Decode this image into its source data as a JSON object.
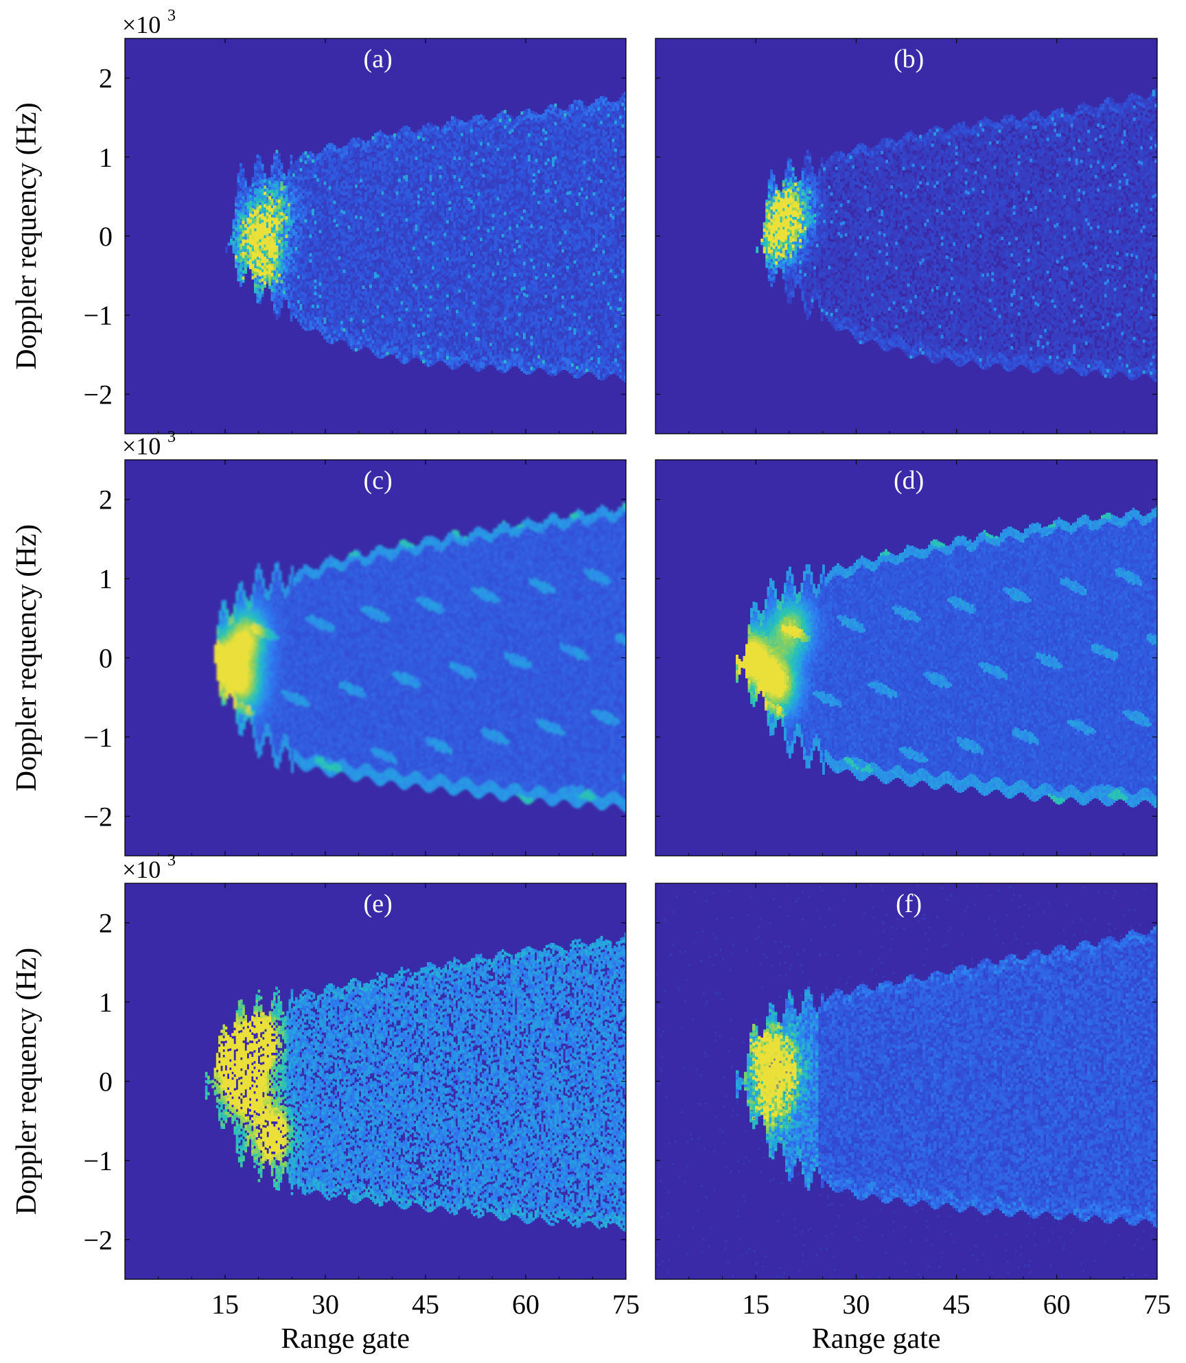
{
  "figure": {
    "background_color": "#3b2aa8",
    "colormap": [
      "#3b2aa8",
      "#3050d8",
      "#2f7cf0",
      "#25a9dc",
      "#2cc5b0",
      "#8fd15a",
      "#ece03a"
    ],
    "x_axis": {
      "label": "Range gate",
      "ticks": [
        15,
        30,
        45,
        60,
        75
      ],
      "tick_labels": [
        "15",
        "30",
        "45",
        "60",
        "75"
      ],
      "range": [
        0,
        75
      ]
    },
    "y_axis": {
      "label": "Doppler requency (Hz)",
      "multiplier": "×10",
      "multiplier_exp": "3",
      "ticks": [
        2,
        1,
        0,
        -1,
        -2
      ],
      "tick_labels": [
        "2",
        "1",
        "0",
        "−1",
        "−2"
      ],
      "range": [
        -2.5,
        2.5
      ]
    }
  },
  "chart_data": [
    {
      "type": "heatmap",
      "panel_label": "(a)",
      "style": "fine",
      "xlabel": "",
      "ylabel": "Doppler requency (Hz)",
      "xlim": [
        0,
        75
      ],
      "ylim": [
        -2.5,
        2.5
      ],
      "envelope": {
        "x": [
          15,
          17,
          20,
          25,
          30,
          40,
          50,
          60,
          75
        ],
        "upper": [
          -0.15,
          0.72,
          0.85,
          0.95,
          1.1,
          1.3,
          1.45,
          1.55,
          1.75
        ],
        "lower": [
          -0.2,
          -0.45,
          -0.7,
          -1.05,
          -1.3,
          -1.55,
          -1.65,
          -1.7,
          -1.8
        ]
      },
      "hot_spots": [
        {
          "x": 19.5,
          "y": 0.0,
          "level": 0.95
        },
        {
          "x": 20.5,
          "y": -0.35,
          "level": 0.85
        },
        {
          "x": 22,
          "y": 0.3,
          "level": 0.6
        }
      ],
      "base_level": 0.18
    },
    {
      "type": "heatmap",
      "panel_label": "(b)",
      "style": "fine",
      "xlabel": "",
      "ylabel": "",
      "xlim": [
        0,
        75
      ],
      "ylim": [
        -2.5,
        2.5
      ],
      "envelope": {
        "x": [
          15,
          17,
          20,
          25,
          30,
          40,
          50,
          60,
          75
        ],
        "upper": [
          -0.15,
          0.65,
          0.8,
          0.95,
          1.1,
          1.3,
          1.45,
          1.55,
          1.8
        ],
        "lower": [
          -0.2,
          -0.45,
          -0.7,
          -1.05,
          -1.3,
          -1.55,
          -1.65,
          -1.7,
          -1.8
        ]
      },
      "hot_spots": [
        {
          "x": 17,
          "y": -0.05,
          "level": 0.9
        },
        {
          "x": 20,
          "y": 0.35,
          "level": 0.85
        },
        {
          "x": 19,
          "y": 0.1,
          "level": 0.7
        }
      ],
      "base_level": 0.1
    },
    {
      "type": "heatmap",
      "panel_label": "(c)",
      "style": "smooth",
      "xlabel": "",
      "ylabel": "Doppler requency (Hz)",
      "xlim": [
        0,
        75
      ],
      "ylim": [
        -2.5,
        2.5
      ],
      "envelope": {
        "x": [
          13,
          15,
          17,
          20,
          25,
          30,
          40,
          50,
          60,
          75
        ],
        "upper": [
          0.2,
          0.65,
          0.75,
          1.0,
          1.05,
          1.2,
          1.4,
          1.55,
          1.7,
          1.9
        ],
        "lower": [
          -0.1,
          -0.55,
          -0.8,
          -1.1,
          -1.35,
          -1.45,
          -1.6,
          -1.7,
          -1.8,
          -1.9
        ]
      },
      "hot_spots": [
        {
          "x": 14,
          "y": -0.1,
          "level": 0.85
        },
        {
          "x": 18,
          "y": 0.25,
          "level": 0.75
        },
        {
          "x": 17.5,
          "y": -0.35,
          "level": 0.7
        }
      ],
      "base_level": 0.2
    },
    {
      "type": "heatmap",
      "panel_label": "(d)",
      "style": "streak",
      "xlabel": "",
      "ylabel": "",
      "xlim": [
        0,
        75
      ],
      "ylim": [
        -2.5,
        2.5
      ],
      "envelope": {
        "x": [
          12,
          15,
          17,
          20,
          25,
          30,
          40,
          50,
          60,
          75
        ],
        "upper": [
          -0.1,
          0.65,
          0.8,
          0.95,
          1.05,
          1.2,
          1.4,
          1.55,
          1.7,
          1.85
        ],
        "lower": [
          -0.2,
          -0.5,
          -0.8,
          -1.1,
          -1.35,
          -1.5,
          -1.6,
          -1.7,
          -1.8,
          -1.85
        ]
      },
      "hot_spots": [
        {
          "x": 14,
          "y": 0.0,
          "level": 1.0
        },
        {
          "x": 18,
          "y": -0.35,
          "level": 0.9
        },
        {
          "x": 20,
          "y": 0.35,
          "level": 0.7
        }
      ],
      "base_level": 0.2
    },
    {
      "type": "heatmap",
      "panel_label": "(e)",
      "style": "speckle",
      "xlabel": "Range gate",
      "ylabel": "Doppler requency (Hz)",
      "xlim": [
        0,
        75
      ],
      "ylim": [
        -2.5,
        2.5
      ],
      "envelope": {
        "x": [
          12,
          15,
          17,
          20,
          25,
          30,
          40,
          50,
          60,
          75
        ],
        "upper": [
          0.0,
          0.65,
          0.85,
          0.95,
          1.05,
          1.15,
          1.35,
          1.5,
          1.65,
          1.8
        ],
        "lower": [
          -0.15,
          -0.5,
          -0.9,
          -1.1,
          -1.35,
          -1.45,
          -1.55,
          -1.65,
          -1.75,
          -1.85
        ]
      },
      "hot_spots": [
        {
          "x": 16,
          "y": 0.3,
          "level": 0.85
        },
        {
          "x": 18,
          "y": -0.1,
          "level": 0.9
        },
        {
          "x": 20,
          "y": 0.5,
          "level": 0.8
        },
        {
          "x": 22,
          "y": -0.7,
          "level": 0.75
        }
      ],
      "base_level": 0.35
    },
    {
      "type": "heatmap",
      "panel_label": "(f)",
      "style": "noisy",
      "xlabel": "Range gate",
      "ylabel": "",
      "xlim": [
        0,
        75
      ],
      "ylim": [
        -2.5,
        2.5
      ],
      "envelope": {
        "x": [
          12,
          15,
          17,
          20,
          25,
          30,
          40,
          50,
          60,
          75
        ],
        "upper": [
          0.0,
          0.65,
          0.8,
          0.95,
          1.05,
          1.15,
          1.3,
          1.5,
          1.65,
          1.9
        ],
        "lower": [
          -0.1,
          -0.5,
          -0.8,
          -1.1,
          -1.3,
          -1.45,
          -1.55,
          -1.65,
          -1.7,
          -1.8
        ]
      },
      "hot_spots": [
        {
          "x": 16.5,
          "y": 0.35,
          "level": 0.85
        },
        {
          "x": 18.5,
          "y": 0.1,
          "level": 0.75
        },
        {
          "x": 17,
          "y": -0.3,
          "level": 0.7
        }
      ],
      "base_level": 0.22
    }
  ]
}
